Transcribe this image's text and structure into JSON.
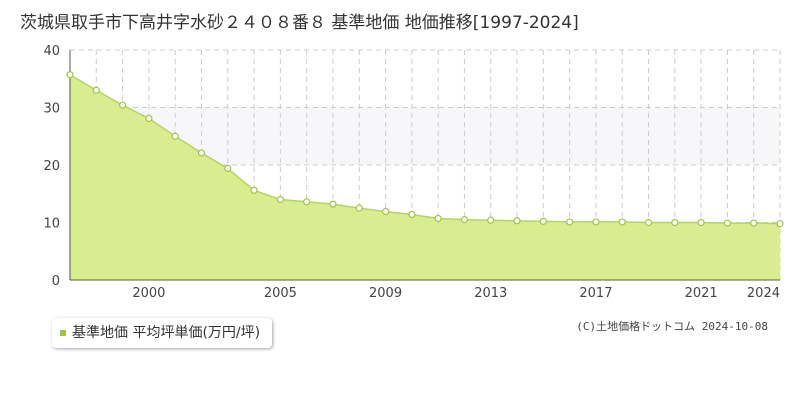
{
  "title": "茨城県取手市下高井字水砂２４０８番８ 基準地価 地価推移[1997-2024]",
  "legend_label": "基準地価 平均坪単価(万円/坪)",
  "copyright": "(C)土地価格ドットコム 2024-10-08",
  "colors": {
    "area_fill": "#d9ec8f",
    "line": "#b5d65a",
    "marker": "#ffffff",
    "marker_stroke": "#a3c43c",
    "grid": "#cccccc",
    "band": "#f7f7f9",
    "legend_swatch": "#a3c43c"
  },
  "chart_data": {
    "type": "area",
    "title": "茨城県取手市下高井字水砂２４０８番８ 基準地価 地価推移[1997-2024]",
    "xlabel": "",
    "ylabel": "",
    "x": [
      1997,
      1998,
      1999,
      2000,
      2001,
      2002,
      2003,
      2004,
      2005,
      2006,
      2007,
      2008,
      2009,
      2010,
      2011,
      2012,
      2013,
      2014,
      2015,
      2016,
      2017,
      2018,
      2019,
      2020,
      2021,
      2022,
      2023,
      2024
    ],
    "series": [
      {
        "name": "基準地価 平均坪単価(万円/坪)",
        "values": [
          35.7,
          33.0,
          30.4,
          28.1,
          25.0,
          22.1,
          19.4,
          15.6,
          14.0,
          13.6,
          13.2,
          12.5,
          11.9,
          11.4,
          10.7,
          10.5,
          10.4,
          10.3,
          10.2,
          10.1,
          10.1,
          10.1,
          10.0,
          10.0,
          10.0,
          9.9,
          9.9,
          9.8
        ]
      }
    ],
    "ylim": [
      0,
      40
    ],
    "yticks": [
      0,
      10,
      20,
      30,
      40
    ],
    "xticks": [
      2000,
      2005,
      2009,
      2013,
      2017,
      2021,
      2024
    ],
    "grid": true,
    "legend_position": "bottom-left"
  }
}
